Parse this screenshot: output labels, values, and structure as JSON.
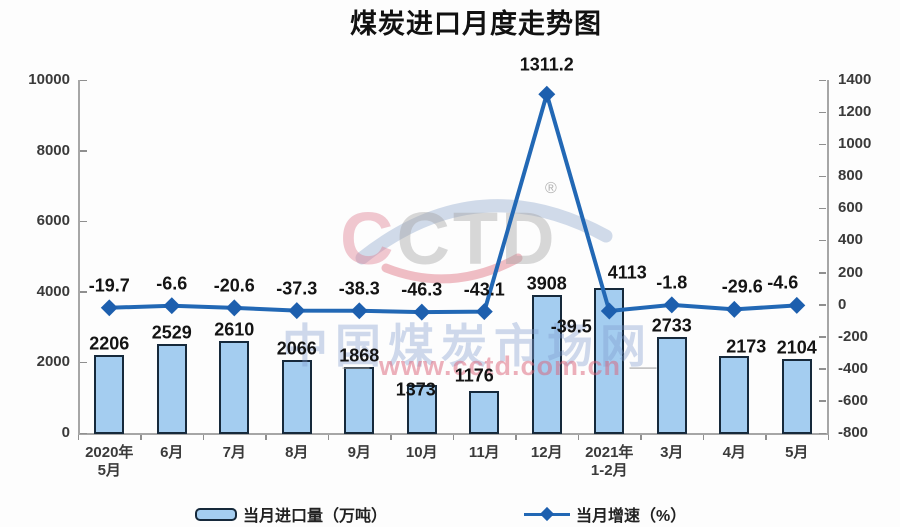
{
  "title": "煤炭进口月度走势图",
  "legend": {
    "bar_label": "当月进口量（万吨）",
    "line_label": "当月增速（%）"
  },
  "watermark": {
    "logo_first": "C",
    "logo_rest": "CTD",
    "registered": "®",
    "site_name": "中国煤炭市场网",
    "url": "www.cctd.com.cn",
    "dash": "—"
  },
  "colors": {
    "bar_fill": "#a4cdf0",
    "bar_border": "#16293b",
    "line": "#2268b5",
    "marker": "#1d5fae",
    "axis": "#a6a6a6",
    "label_text": "#141414"
  },
  "chart_data": {
    "type": "bar",
    "subtype": "combo-bar-line",
    "title": "煤炭进口月度走势图",
    "categories": [
      "2020年\n5月",
      "6月",
      "7月",
      "8月",
      "9月",
      "10月",
      "11月",
      "12月",
      "2021年\n1-2月",
      "3月",
      "4月",
      "5月"
    ],
    "series": [
      {
        "name": "当月进口量（万吨）",
        "type": "bar",
        "axis": "left",
        "values": [
          2206,
          2529,
          2610,
          2066,
          1868,
          1373,
          1176,
          3908,
          4113,
          2733,
          2173,
          2104
        ]
      },
      {
        "name": "当月增速（%）",
        "type": "line",
        "axis": "right",
        "values": [
          -19.7,
          -6.6,
          -20.6,
          -37.3,
          -38.3,
          -46.3,
          -43.1,
          1311.2,
          -39.5,
          -1.8,
          -29.6,
          -4.6
        ]
      }
    ],
    "left_axis": {
      "min": 0,
      "max": 10000,
      "step": 2000
    },
    "right_axis": {
      "min": -800,
      "max": 1400,
      "step": 200
    },
    "legend_position": "bottom",
    "grid": false,
    "data_labels": true
  }
}
